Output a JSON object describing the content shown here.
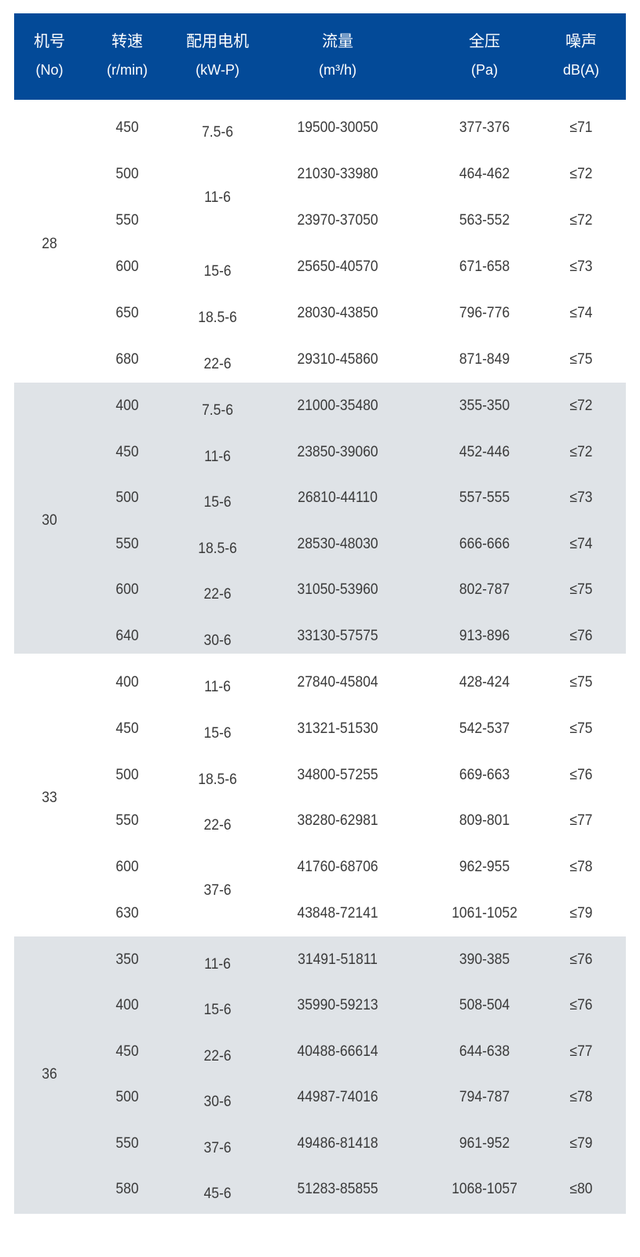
{
  "header": {
    "columns": [
      {
        "title": "机号",
        "sub": "(No)"
      },
      {
        "title": "转速",
        "sub": "(r/min)"
      },
      {
        "title": "配用电机",
        "sub": "(kW-P)"
      },
      {
        "title": "流量",
        "sub": "(m³/h)"
      },
      {
        "title": "全压",
        "sub": "(Pa)"
      },
      {
        "title": "噪声",
        "sub": "dB(A)"
      }
    ]
  },
  "colors": {
    "header_bg": "#034a98",
    "shade_bg": "#dfe3e7"
  },
  "groups": [
    {
      "no": "28",
      "rows": [
        {
          "speed": "450",
          "motor": "7.5-6",
          "flow": "19500-30050",
          "pressure": "377-376",
          "noise": "≤71"
        },
        {
          "speed": "500",
          "motor": "11-6",
          "motor_span": 2,
          "flow": "21030-33980",
          "pressure": "464-462",
          "noise": "≤72"
        },
        {
          "speed": "550",
          "motor": null,
          "flow": "23970-37050",
          "pressure": "563-552",
          "noise": "≤72"
        },
        {
          "speed": "600",
          "motor": "15-6",
          "flow": "25650-40570",
          "pressure": "671-658",
          "noise": "≤73"
        },
        {
          "speed": "650",
          "motor": "18.5-6",
          "flow": "28030-43850",
          "pressure": "796-776",
          "noise": "≤74"
        },
        {
          "speed": "680",
          "motor": "22-6",
          "flow": "29310-45860",
          "pressure": "871-849",
          "noise": "≤75"
        }
      ]
    },
    {
      "no": "30",
      "rows": [
        {
          "speed": "400",
          "motor": "7.5-6",
          "flow": "21000-35480",
          "pressure": "355-350",
          "noise": "≤72"
        },
        {
          "speed": "450",
          "motor": "11-6",
          "flow": "23850-39060",
          "pressure": "452-446",
          "noise": "≤72"
        },
        {
          "speed": "500",
          "motor": "15-6",
          "flow": "26810-44110",
          "pressure": "557-555",
          "noise": "≤73"
        },
        {
          "speed": "550",
          "motor": "18.5-6",
          "flow": "28530-48030",
          "pressure": "666-666",
          "noise": "≤74"
        },
        {
          "speed": "600",
          "motor": "22-6",
          "flow": "31050-53960",
          "pressure": "802-787",
          "noise": "≤75"
        },
        {
          "speed": "640",
          "motor": "30-6",
          "flow": "33130-57575",
          "pressure": "913-896",
          "noise": "≤76"
        }
      ]
    },
    {
      "no": "33",
      "rows": [
        {
          "speed": "400",
          "motor": "11-6",
          "flow": "27840-45804",
          "pressure": "428-424",
          "noise": "≤75"
        },
        {
          "speed": "450",
          "motor": "15-6",
          "flow": "31321-51530",
          "pressure": "542-537",
          "noise": "≤75"
        },
        {
          "speed": "500",
          "motor": "18.5-6",
          "flow": "34800-57255",
          "pressure": "669-663",
          "noise": "≤76"
        },
        {
          "speed": "550",
          "motor": "22-6",
          "flow": "38280-62981",
          "pressure": "809-801",
          "noise": "≤77"
        },
        {
          "speed": "600",
          "motor": "37-6",
          "motor_span": 2,
          "flow": "41760-68706",
          "pressure": "962-955",
          "noise": "≤78"
        },
        {
          "speed": "630",
          "motor": null,
          "flow": "43848-72141",
          "pressure": "1061-1052",
          "noise": "≤79"
        }
      ]
    },
    {
      "no": "36",
      "rows": [
        {
          "speed": "350",
          "motor": "11-6",
          "flow": "31491-51811",
          "pressure": "390-385",
          "noise": "≤76"
        },
        {
          "speed": "400",
          "motor": "15-6",
          "flow": "35990-59213",
          "pressure": "508-504",
          "noise": "≤76"
        },
        {
          "speed": "450",
          "motor": "22-6",
          "flow": "40488-66614",
          "pressure": "644-638",
          "noise": "≤77"
        },
        {
          "speed": "500",
          "motor": "30-6",
          "flow": "44987-74016",
          "pressure": "794-787",
          "noise": "≤78"
        },
        {
          "speed": "550",
          "motor": "37-6",
          "flow": "49486-81418",
          "pressure": "961-952",
          "noise": "≤79"
        },
        {
          "speed": "580",
          "motor": "45-6",
          "flow": "51283-85855",
          "pressure": "1068-1057",
          "noise": "≤80"
        }
      ]
    }
  ]
}
